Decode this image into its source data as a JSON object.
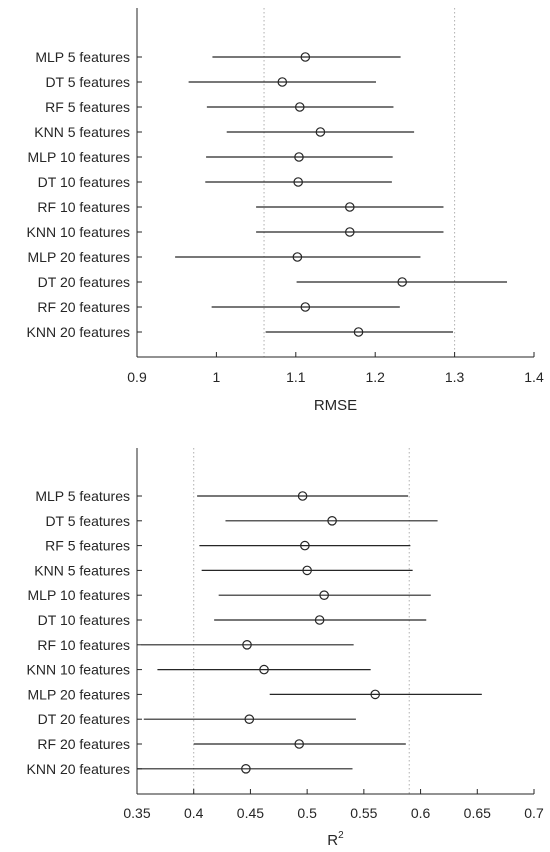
{
  "chart_data": [
    {
      "type": "errorbar",
      "xlabel": "RMSE",
      "xlim": [
        0.9,
        1.4
      ],
      "xticks": [
        0.9,
        1,
        1.1,
        1.2,
        1.3,
        1.4
      ],
      "xtick_labels": [
        "0.9",
        "1",
        "1.1",
        "1.2",
        "1.3",
        "1.4"
      ],
      "reference_lines": [
        1.06,
        1.3
      ],
      "grid": false,
      "categories": [
        "MLP 5 features",
        "DT 5 features",
        "RF 5 features",
        "KNN 5 features",
        "MLP 10 features",
        "DT 10 features",
        "RF 10 features",
        "KNN 10 features",
        "MLP 20 features",
        "DT 20 features",
        "RF 20 features",
        "KNN 20 features"
      ],
      "mean": [
        1.112,
        1.083,
        1.105,
        1.131,
        1.104,
        1.103,
        1.168,
        1.168,
        1.102,
        1.234,
        1.112,
        1.179
      ],
      "lower": [
        0.995,
        0.965,
        0.988,
        1.013,
        0.987,
        0.986,
        1.05,
        1.05,
        0.948,
        1.101,
        0.994,
        1.062
      ],
      "upper": [
        1.232,
        1.201,
        1.223,
        1.249,
        1.222,
        1.221,
        1.286,
        1.286,
        1.257,
        1.366,
        1.231,
        1.298
      ]
    },
    {
      "type": "errorbar",
      "xlabel": "R",
      "xlabel_superscript": "2",
      "xlim": [
        0.35,
        0.7
      ],
      "xticks": [
        0.35,
        0.4,
        0.45,
        0.5,
        0.55,
        0.6,
        0.65,
        0.7
      ],
      "xtick_labels": [
        "0.35",
        "0.4",
        "0.45",
        "0.5",
        "0.55",
        "0.6",
        "0.65",
        "0.7"
      ],
      "reference_lines": [
        0.4,
        0.59
      ],
      "grid": false,
      "categories": [
        "MLP 5 features",
        "DT 5 features",
        "RF 5 features",
        "KNN 5 features",
        "MLP 10 features",
        "DT 10 features",
        "RF 10 features",
        "KNN 10 features",
        "MLP 20 features",
        "DT 20 features",
        "RF 20 features",
        "KNN 20 features"
      ],
      "mean": [
        0.496,
        0.522,
        0.498,
        0.5,
        0.515,
        0.511,
        0.447,
        0.462,
        0.56,
        0.449,
        0.493,
        0.446
      ],
      "lower": [
        0.403,
        0.428,
        0.405,
        0.407,
        0.422,
        0.418,
        0.354,
        0.368,
        0.467,
        0.356,
        0.4,
        0.35
      ],
      "upper": [
        0.589,
        0.615,
        0.591,
        0.593,
        0.609,
        0.605,
        0.541,
        0.556,
        0.654,
        0.543,
        0.587,
        0.54
      ]
    }
  ]
}
